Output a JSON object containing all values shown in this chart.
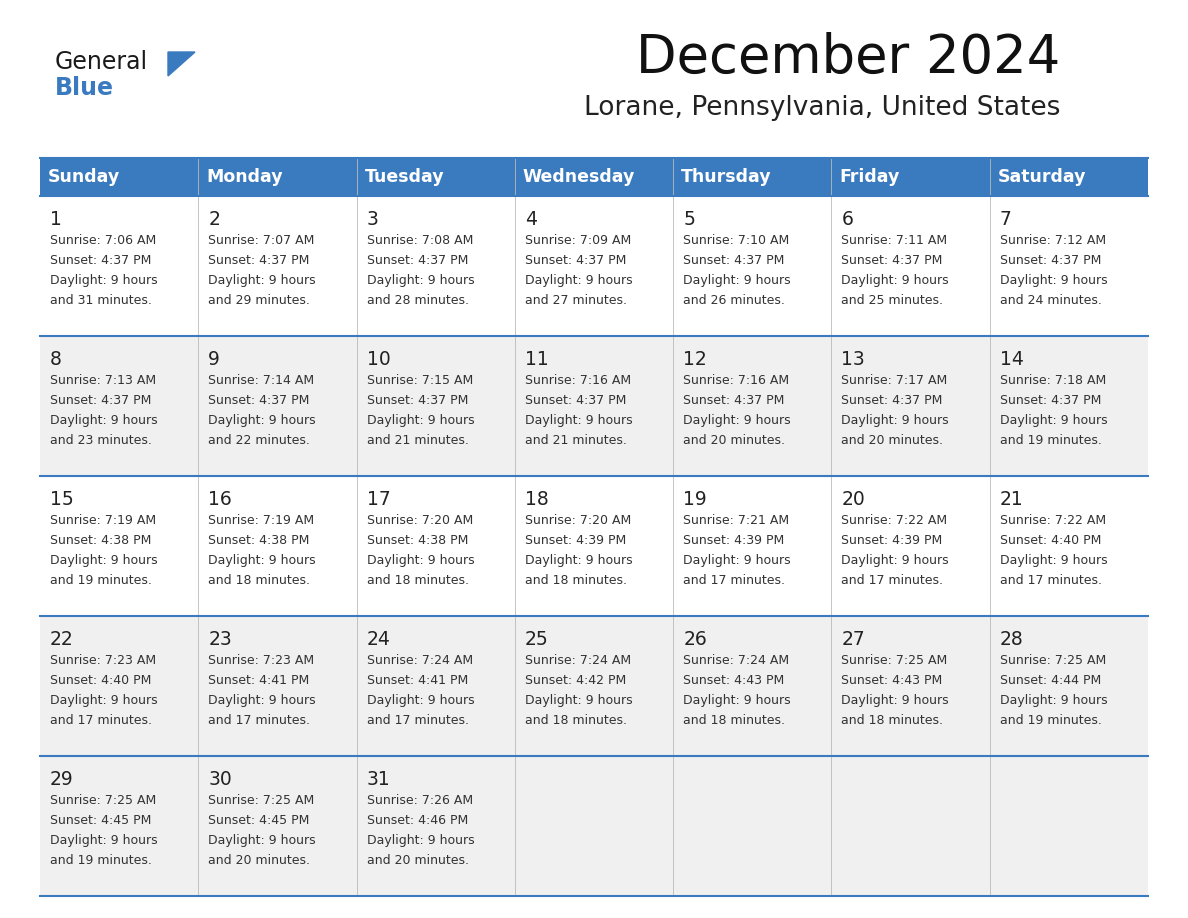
{
  "title": "December 2024",
  "subtitle": "Lorane, Pennsylvania, United States",
  "days_of_week": [
    "Sunday",
    "Monday",
    "Tuesday",
    "Wednesday",
    "Thursday",
    "Friday",
    "Saturday"
  ],
  "header_bg": "#3a7abf",
  "header_text": "#ffffff",
  "row_bg_white": "#ffffff",
  "row_bg_gray": "#f0f0f0",
  "day_num_color": "#222222",
  "text_color": "#333333",
  "border_color": "#3a7abf",
  "sep_color": "#3a7abf",
  "logo_general_color": "#1a1a1a",
  "logo_blue_color": "#3a7abf",
  "logo_triangle_color": "#3a7abf",
  "calendar_data": [
    [
      {
        "day": 1,
        "sunrise": "7:06 AM",
        "sunset": "4:37 PM",
        "daylight_min": "31"
      },
      {
        "day": 2,
        "sunrise": "7:07 AM",
        "sunset": "4:37 PM",
        "daylight_min": "29"
      },
      {
        "day": 3,
        "sunrise": "7:08 AM",
        "sunset": "4:37 PM",
        "daylight_min": "28"
      },
      {
        "day": 4,
        "sunrise": "7:09 AM",
        "sunset": "4:37 PM",
        "daylight_min": "27"
      },
      {
        "day": 5,
        "sunrise": "7:10 AM",
        "sunset": "4:37 PM",
        "daylight_min": "26"
      },
      {
        "day": 6,
        "sunrise": "7:11 AM",
        "sunset": "4:37 PM",
        "daylight_min": "25"
      },
      {
        "day": 7,
        "sunrise": "7:12 AM",
        "sunset": "4:37 PM",
        "daylight_min": "24"
      }
    ],
    [
      {
        "day": 8,
        "sunrise": "7:13 AM",
        "sunset": "4:37 PM",
        "daylight_min": "23"
      },
      {
        "day": 9,
        "sunrise": "7:14 AM",
        "sunset": "4:37 PM",
        "daylight_min": "22"
      },
      {
        "day": 10,
        "sunrise": "7:15 AM",
        "sunset": "4:37 PM",
        "daylight_min": "21"
      },
      {
        "day": 11,
        "sunrise": "7:16 AM",
        "sunset": "4:37 PM",
        "daylight_min": "21"
      },
      {
        "day": 12,
        "sunrise": "7:16 AM",
        "sunset": "4:37 PM",
        "daylight_min": "20"
      },
      {
        "day": 13,
        "sunrise": "7:17 AM",
        "sunset": "4:37 PM",
        "daylight_min": "20"
      },
      {
        "day": 14,
        "sunrise": "7:18 AM",
        "sunset": "4:37 PM",
        "daylight_min": "19"
      }
    ],
    [
      {
        "day": 15,
        "sunrise": "7:19 AM",
        "sunset": "4:38 PM",
        "daylight_min": "19"
      },
      {
        "day": 16,
        "sunrise": "7:19 AM",
        "sunset": "4:38 PM",
        "daylight_min": "18"
      },
      {
        "day": 17,
        "sunrise": "7:20 AM",
        "sunset": "4:38 PM",
        "daylight_min": "18"
      },
      {
        "day": 18,
        "sunrise": "7:20 AM",
        "sunset": "4:39 PM",
        "daylight_min": "18"
      },
      {
        "day": 19,
        "sunrise": "7:21 AM",
        "sunset": "4:39 PM",
        "daylight_min": "17"
      },
      {
        "day": 20,
        "sunrise": "7:22 AM",
        "sunset": "4:39 PM",
        "daylight_min": "17"
      },
      {
        "day": 21,
        "sunrise": "7:22 AM",
        "sunset": "4:40 PM",
        "daylight_min": "17"
      }
    ],
    [
      {
        "day": 22,
        "sunrise": "7:23 AM",
        "sunset": "4:40 PM",
        "daylight_min": "17"
      },
      {
        "day": 23,
        "sunrise": "7:23 AM",
        "sunset": "4:41 PM",
        "daylight_min": "17"
      },
      {
        "day": 24,
        "sunrise": "7:24 AM",
        "sunset": "4:41 PM",
        "daylight_min": "17"
      },
      {
        "day": 25,
        "sunrise": "7:24 AM",
        "sunset": "4:42 PM",
        "daylight_min": "18"
      },
      {
        "day": 26,
        "sunrise": "7:24 AM",
        "sunset": "4:43 PM",
        "daylight_min": "18"
      },
      {
        "day": 27,
        "sunrise": "7:25 AM",
        "sunset": "4:43 PM",
        "daylight_min": "18"
      },
      {
        "day": 28,
        "sunrise": "7:25 AM",
        "sunset": "4:44 PM",
        "daylight_min": "19"
      }
    ],
    [
      {
        "day": 29,
        "sunrise": "7:25 AM",
        "sunset": "4:45 PM",
        "daylight_min": "19"
      },
      {
        "day": 30,
        "sunrise": "7:25 AM",
        "sunset": "4:45 PM",
        "daylight_min": "20"
      },
      {
        "day": 31,
        "sunrise": "7:26 AM",
        "sunset": "4:46 PM",
        "daylight_min": "20"
      },
      null,
      null,
      null,
      null
    ]
  ],
  "row_colors": [
    "#ffffff",
    "#f0f0f0",
    "#ffffff",
    "#f0f0f0",
    "#f0f0f0"
  ]
}
